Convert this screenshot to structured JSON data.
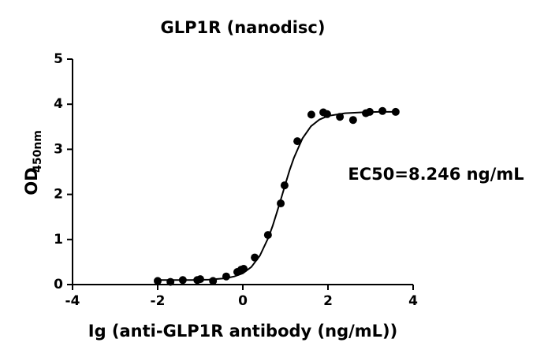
{
  "chart_data": {
    "type": "scatter",
    "title": "GLP1R (nanodisc)",
    "x_label": "Ig (anti-GLP1R antibody (ng/mL))",
    "y_label": {
      "main": "OD",
      "subscript": "450nm"
    },
    "annotation": "EC50=8.246 ng/mL",
    "xlim": [
      -4,
      4
    ],
    "xticks": [
      -4,
      -2,
      0,
      2,
      4
    ],
    "ylim": [
      0,
      5
    ],
    "yticks": [
      0,
      1,
      2,
      3,
      4,
      5
    ],
    "color": "#000000",
    "points": {
      "x": [
        -2.0,
        -1.7,
        -1.41,
        -1.07,
        -1.0,
        -0.7,
        -0.39,
        -0.13,
        -0.04,
        0.02,
        0.28,
        0.59,
        0.89,
        0.98,
        1.28,
        1.61,
        1.89,
        1.98,
        2.28,
        2.59,
        2.89,
        2.98,
        3.28,
        3.59
      ],
      "values": [
        0.08,
        0.06,
        0.1,
        0.1,
        0.12,
        0.08,
        0.18,
        0.28,
        0.33,
        0.35,
        0.6,
        1.1,
        1.8,
        2.2,
        3.18,
        3.77,
        3.82,
        3.78,
        3.72,
        3.65,
        3.8,
        3.83,
        3.85,
        3.83
      ]
    },
    "curve": {
      "x": [
        -2,
        -1.6,
        -1.2,
        -0.8,
        -0.4,
        -0.2,
        0,
        0.2,
        0.4,
        0.6,
        0.7,
        0.8,
        0.9,
        1.0,
        1.1,
        1.2,
        1.4,
        1.6,
        1.8,
        2.0,
        2.4,
        2.8,
        3.2,
        3.6
      ],
      "values": [
        0.1,
        0.1,
        0.1,
        0.11,
        0.14,
        0.18,
        0.25,
        0.39,
        0.64,
        1.04,
        1.3,
        1.6,
        1.91,
        2.23,
        2.54,
        2.81,
        3.24,
        3.51,
        3.66,
        3.74,
        3.8,
        3.82,
        3.83,
        3.83
      ]
    }
  }
}
